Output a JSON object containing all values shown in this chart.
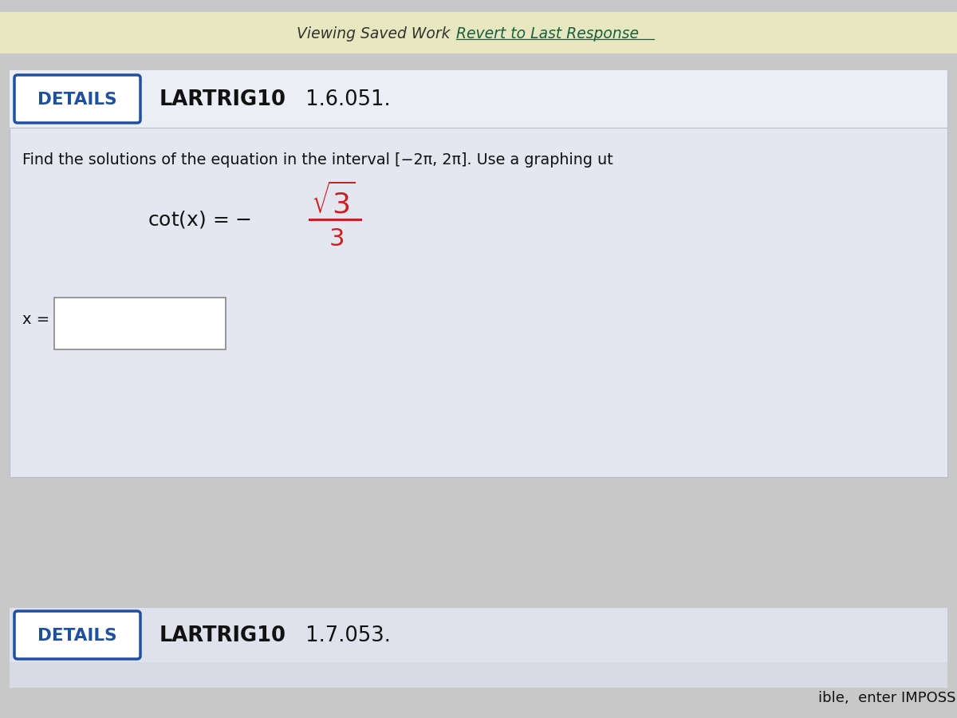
{
  "bg_color": "#c8c8c8",
  "top_bar_color": "#e8e8c0",
  "top_bar_text": "Viewing Saved Work ",
  "top_bar_link": "Revert to Last Response",
  "content1_bg": "#e4e6f0",
  "content1_header_bg": "#eceef5",
  "details_border_color": "#1e4fa0",
  "details_text": "DETAILS",
  "problem1_bold": "LARTRIG10",
  "problem1_normal": " 1.6.051.",
  "find_text": "Find the solutions of the equation in the interval [−2π, 2π]. Use a graphing ut",
  "problem2_bold": "LARTRIG10",
  "problem2_normal": " 1.7.053.",
  "bottom_fragment": "ible,  enter IMPOSS",
  "red_color": "#cc2020",
  "dark_text": "#111111",
  "link_color": "#1a6040",
  "separator_color": "#bbbbcc",
  "input_border": "#888888"
}
